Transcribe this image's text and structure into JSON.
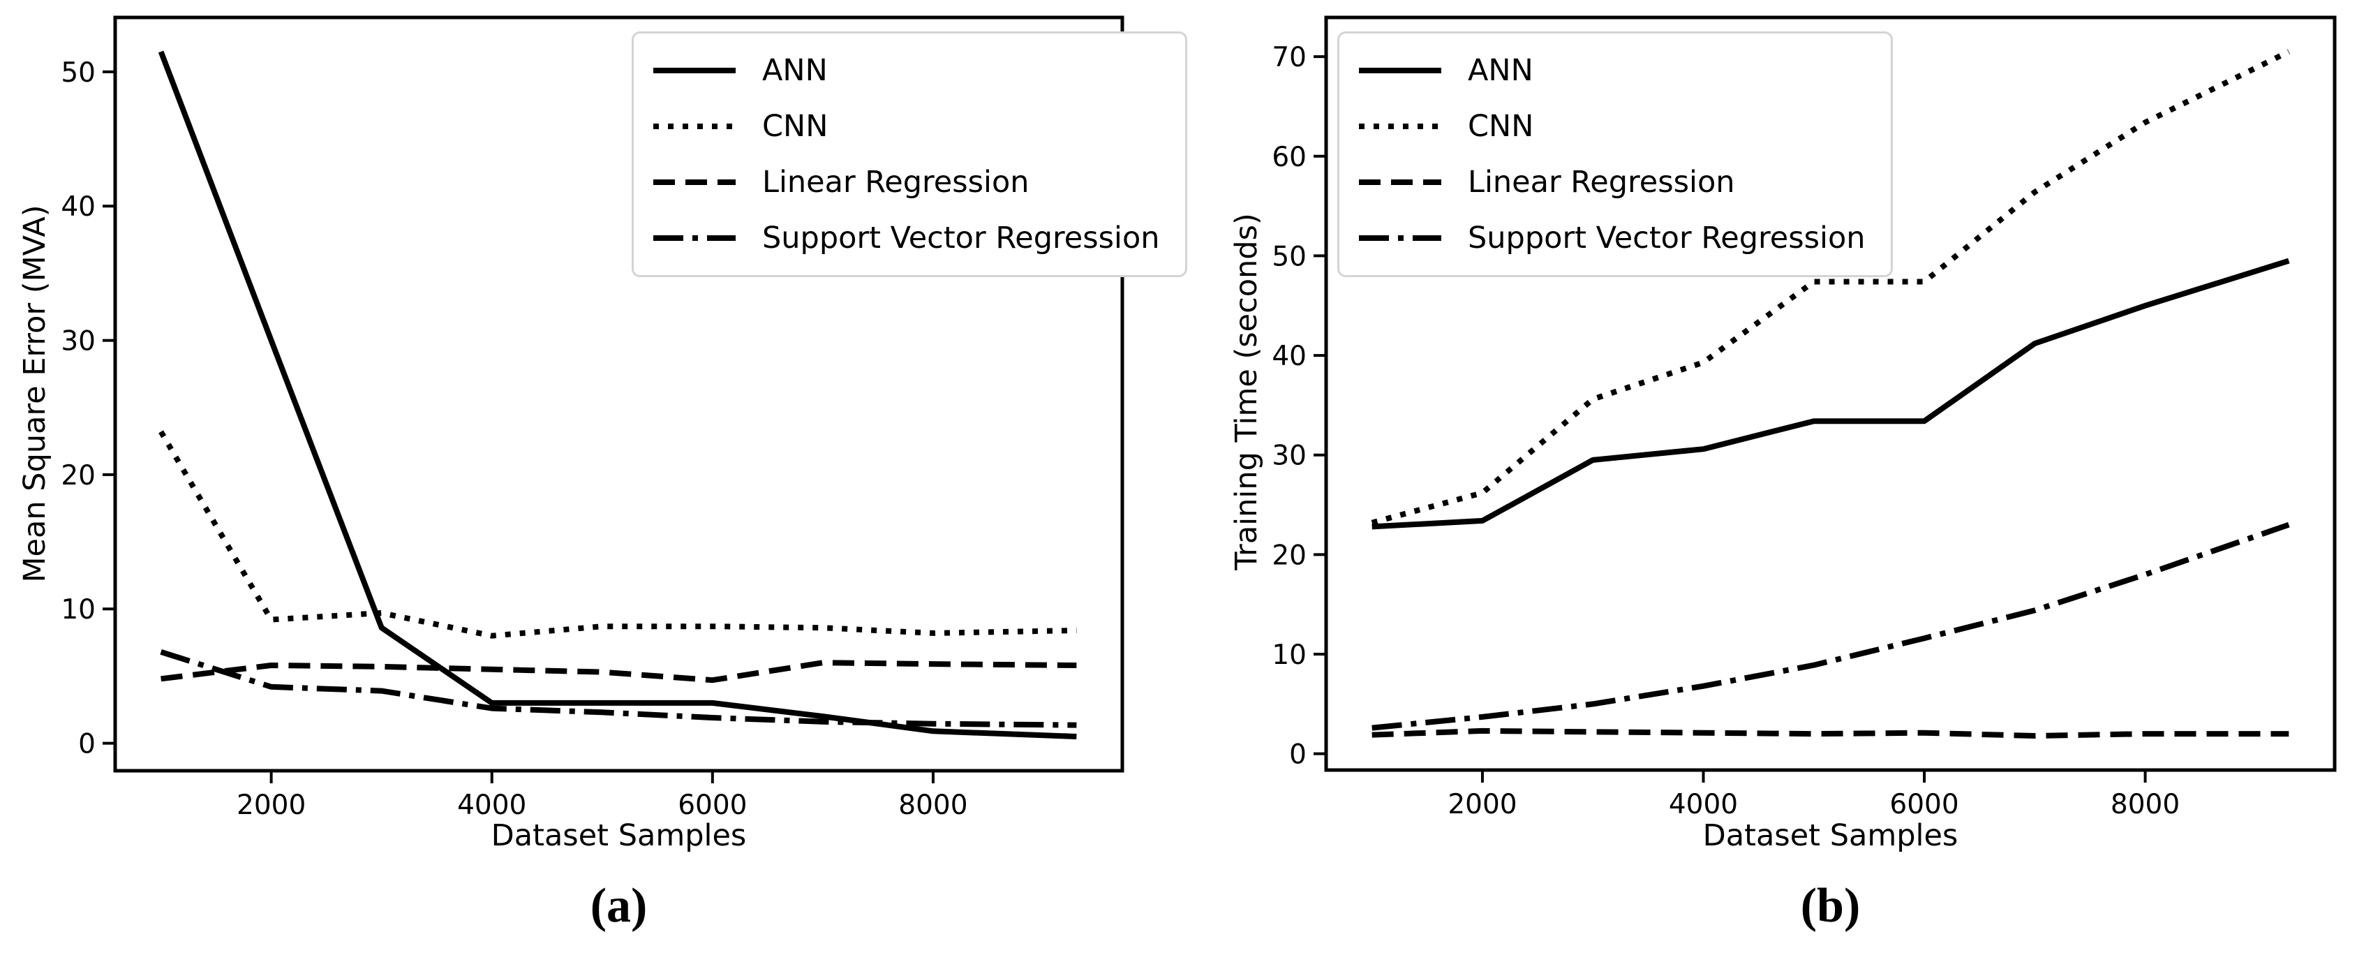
{
  "colors": {
    "line": "#000000",
    "text": "#000000",
    "background": "#ffffff",
    "legend_border": "#d4d4d4"
  },
  "captions": {
    "a": "(a)",
    "b": "(b)"
  },
  "chart_data": [
    {
      "type": "line",
      "panel": "a",
      "title": "",
      "xlabel": "Dataset Samples",
      "ylabel": "Mean Square Error (MVA)",
      "x": [
        1000,
        2000,
        3000,
        4000,
        5000,
        6000,
        7000,
        8000,
        9300
      ],
      "x_ticks": [
        2000,
        4000,
        6000,
        8000
      ],
      "y_ticks": [
        0,
        10,
        20,
        30,
        40,
        50
      ],
      "grid": false,
      "legend_position": "upper right",
      "series": [
        {
          "name": "ANN",
          "linestyle": "solid",
          "values": [
            51.5,
            30.0,
            8.6,
            3.0,
            3.0,
            3.0,
            2.0,
            0.9,
            0.5
          ]
        },
        {
          "name": "CNN",
          "linestyle": "dotted",
          "values": [
            23.2,
            9.2,
            9.7,
            8.0,
            8.7,
            8.7,
            8.6,
            8.2,
            8.4
          ]
        },
        {
          "name": "Linear Regression",
          "linestyle": "dashed",
          "values": [
            4.8,
            5.8,
            5.7,
            5.5,
            5.3,
            4.7,
            6.0,
            5.9,
            5.8
          ]
        },
        {
          "name": "Support Vector Regression",
          "linestyle": "dashdot",
          "values": [
            6.8,
            4.2,
            3.9,
            2.6,
            2.3,
            1.9,
            1.6,
            1.45,
            1.35
          ]
        }
      ]
    },
    {
      "type": "line",
      "panel": "b",
      "title": "",
      "xlabel": "Dataset Samples",
      "ylabel": "Training Time (seconds)",
      "x": [
        1000,
        2000,
        3000,
        4000,
        5000,
        6000,
        7000,
        8000,
        9300
      ],
      "x_ticks": [
        2000,
        4000,
        6000,
        8000
      ],
      "y_ticks": [
        0,
        10,
        20,
        30,
        40,
        50,
        60,
        70
      ],
      "grid": false,
      "legend_position": "upper left",
      "series": [
        {
          "name": "ANN",
          "linestyle": "solid",
          "values": [
            22.8,
            23.4,
            29.5,
            30.6,
            33.4,
            33.4,
            41.2,
            45.0,
            49.5
          ]
        },
        {
          "name": "CNN",
          "linestyle": "dotted",
          "values": [
            23.2,
            26.2,
            35.6,
            39.3,
            47.4,
            47.4,
            56.4,
            63.4,
            70.5
          ]
        },
        {
          "name": "Linear Regression",
          "linestyle": "dashed",
          "values": [
            1.9,
            2.3,
            2.2,
            2.1,
            2.0,
            2.1,
            1.8,
            2.0,
            2.0
          ]
        },
        {
          "name": "Support Vector Regression",
          "linestyle": "dashdot",
          "values": [
            2.6,
            3.7,
            5.0,
            6.8,
            8.9,
            11.6,
            14.4,
            18.0,
            23.0
          ]
        }
      ]
    }
  ]
}
